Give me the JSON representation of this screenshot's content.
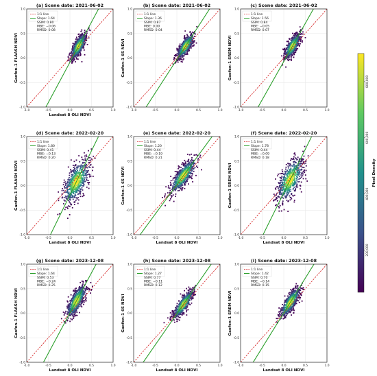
{
  "figure": {
    "colorbar": {
      "label": "Pixel Density",
      "ticks": [
        {
          "label": "200,000",
          "value": 200000
        },
        {
          "label": "400,000",
          "value": 400000
        },
        {
          "label": "600,000",
          "value": 600000
        },
        {
          "label": "800,000",
          "value": 800000
        }
      ],
      "min": 50000,
      "max": 900000,
      "colormap": [
        "#440154",
        "#3b528b",
        "#21918c",
        "#5ec962",
        "#fde725"
      ]
    },
    "colors": {
      "one_to_one": "#d62728",
      "fit_line": "#2ca02c",
      "grid": "#e6e6e6"
    }
  },
  "chart_data": [
    {
      "panel": "a",
      "type": "scatter",
      "title": "(a) Scene date: 2021-06-02",
      "xlabel": "Landsat 8 OLI NDVI",
      "ylabel": "Gaofen-1 FLAASH NDVI",
      "xlim": [
        -1.0,
        1.0
      ],
      "ylim": [
        -1.0,
        1.0
      ],
      "grid": true,
      "legend_placement": "top-left",
      "legend": [
        "1:1 line",
        "Slope: 1.64"
      ],
      "slope": 1.64,
      "stats": [
        "SSIM: 0.80",
        "MBE: −0.06",
        "RMSD: 0.08"
      ],
      "density": {
        "center_x": 0.2,
        "center_y": 0.24,
        "x_range": [
          -0.3,
          0.55
        ],
        "y_range": [
          -0.2,
          0.65
        ],
        "spread_major": 0.27,
        "spread_minor": 0.1
      }
    },
    {
      "panel": "b",
      "type": "scatter",
      "title": "(b) Scene date: 2021-06-02",
      "xlabel": "",
      "ylabel": "Gaofen-1 6S NDVI",
      "xlim": [
        -1.0,
        1.0
      ],
      "ylim": [
        -1.0,
        1.0
      ],
      "grid": true,
      "legend_placement": "top-left",
      "legend": [
        "1:1 line",
        "Slope: 1.36"
      ],
      "slope": 1.36,
      "stats": [
        "SSIM: 0.87",
        "MBE: 0.00",
        "RMSD: 0.04"
      ],
      "density": {
        "center_x": 0.2,
        "center_y": 0.24,
        "x_range": [
          -0.3,
          0.55
        ],
        "y_range": [
          -0.2,
          0.65
        ],
        "spread_major": 0.27,
        "spread_minor": 0.1
      }
    },
    {
      "panel": "c",
      "type": "scatter",
      "title": "(c) Scene date: 2021-06-02",
      "xlabel": "",
      "ylabel": "Gaofen-1 SREM NDVI",
      "xlim": [
        -1.0,
        1.0
      ],
      "ylim": [
        -1.0,
        1.0
      ],
      "grid": true,
      "legend_placement": "top-left",
      "legend": [
        "1:1 line",
        "Slope: 1.56"
      ],
      "slope": 1.56,
      "stats": [
        "SSIM: 0.84",
        "MBE: −0.05",
        "RMSD: 0.07"
      ],
      "density": {
        "center_x": 0.2,
        "center_y": 0.24,
        "x_range": [
          -0.3,
          0.55
        ],
        "y_range": [
          -0.2,
          0.65
        ],
        "spread_major": 0.27,
        "spread_minor": 0.1
      }
    },
    {
      "panel": "d",
      "type": "scatter",
      "title": "(d) Scene date: 2022-02-20",
      "xlabel": "Landsat 8 OLI NDVI",
      "ylabel": "Gaofen-1 FLAASH NDVI",
      "xlim": [
        -1.0,
        1.0
      ],
      "ylim": [
        -1.0,
        1.0
      ],
      "grid": true,
      "legend_placement": "top-left",
      "legend": [
        "1:1 line",
        "Slope: 1.80"
      ],
      "slope": 1.8,
      "stats": [
        "SSIM: 0.41",
        "MBE: −0.13",
        "RMSD: 0.20"
      ],
      "density": {
        "center_x": 0.15,
        "center_y": 0.08,
        "x_range": [
          -0.35,
          0.6
        ],
        "y_range": [
          -0.7,
          0.9
        ],
        "spread_major": 0.45,
        "spread_minor": 0.2
      }
    },
    {
      "panel": "e",
      "type": "scatter",
      "title": "(e) Scene date: 2022-02-20",
      "xlabel": "Landsat 8 OLI NDVI",
      "ylabel": "Gaofen-1 6S NDVI",
      "xlim": [
        -1.0,
        1.0
      ],
      "ylim": [
        -1.0,
        1.0
      ],
      "grid": true,
      "legend_placement": "top-left",
      "legend": [
        "1:1 line",
        "Slope: 1.20"
      ],
      "slope": 1.2,
      "stats": [
        "SSIM: 0.44",
        "MBE: −0.19",
        "RMSD: 0.21"
      ],
      "density": {
        "center_x": 0.15,
        "center_y": 0.2,
        "x_range": [
          -0.35,
          0.6
        ],
        "y_range": [
          -0.45,
          0.75
        ],
        "spread_major": 0.4,
        "spread_minor": 0.13
      }
    },
    {
      "panel": "f",
      "type": "scatter",
      "title": "(f) Scene date: 2022-02-20",
      "xlabel": "Landsat 8 OLI NDVI",
      "ylabel": "Gaofen-1 SREM NDVI",
      "xlim": [
        -1.0,
        1.0
      ],
      "ylim": [
        -1.0,
        1.0
      ],
      "grid": true,
      "legend_placement": "top-left",
      "legend": [
        "1:1 line",
        "Slope: 1.78"
      ],
      "slope": 1.78,
      "stats": [
        "SSIM: 0.44",
        "MBE: −0.09",
        "RMSD: 0.18"
      ],
      "density": {
        "center_x": 0.15,
        "center_y": 0.12,
        "x_range": [
          -0.35,
          0.6
        ],
        "y_range": [
          -0.7,
          0.9
        ],
        "spread_major": 0.45,
        "spread_minor": 0.2
      }
    },
    {
      "panel": "g",
      "type": "scatter",
      "title": "(g) Scene date: 2023-12-08",
      "xlabel": "Landsat 8 OLI NDVI",
      "ylabel": "Gaofen-1 FLAASH NDVI",
      "xlim": [
        -1.0,
        1.0
      ],
      "ylim": [
        -1.0,
        1.0
      ],
      "grid": true,
      "legend_placement": "top-left",
      "legend": [
        "1:1 line",
        "Slope: 1.64"
      ],
      "slope": 1.64,
      "stats": [
        "SSIM: 0.53",
        "MBE: −0.24",
        "RMSD: 0.25"
      ],
      "density": {
        "center_x": 0.15,
        "center_y": 0.25,
        "x_range": [
          -0.3,
          0.6
        ],
        "y_range": [
          -0.2,
          0.75
        ],
        "spread_major": 0.35,
        "spread_minor": 0.12
      }
    },
    {
      "panel": "h",
      "type": "scatter",
      "title": "(h) Scene date: 2023-12-08",
      "xlabel": "Landsat 8 OLI NDVI",
      "ylabel": "Gaofen-1 6S NDVI",
      "xlim": [
        -1.0,
        1.0
      ],
      "ylim": [
        -1.0,
        1.0
      ],
      "grid": true,
      "legend_placement": "top-left",
      "legend": [
        "1:1 line",
        "Slope: 1.27"
      ],
      "slope": 1.27,
      "stats": [
        "SSIM: 0.77",
        "MBE: −0.11",
        "RMSD: 0.12"
      ],
      "density": {
        "center_x": 0.15,
        "center_y": 0.18,
        "x_range": [
          -0.3,
          0.6
        ],
        "y_range": [
          -0.2,
          0.6
        ],
        "spread_major": 0.32,
        "spread_minor": 0.1
      }
    },
    {
      "panel": "i",
      "type": "scatter",
      "title": "(i) Scene date: 2023-12-08",
      "xlabel": "Landsat 8 OLI NDVI",
      "ylabel": "Gaofen-1 SREM NDVI",
      "xlim": [
        -1.0,
        1.0
      ],
      "ylim": [
        -1.0,
        1.0
      ],
      "grid": true,
      "legend_placement": "top-left",
      "legend": [
        "1:1 line",
        "Slope: 1.42"
      ],
      "slope": 1.42,
      "stats": [
        "SSIM: 0.70",
        "MBE: −0.14",
        "RMSD: 0.15"
      ],
      "density": {
        "center_x": 0.15,
        "center_y": 0.22,
        "x_range": [
          -0.3,
          0.6
        ],
        "y_range": [
          -0.2,
          0.65
        ],
        "spread_major": 0.33,
        "spread_minor": 0.11
      }
    }
  ]
}
